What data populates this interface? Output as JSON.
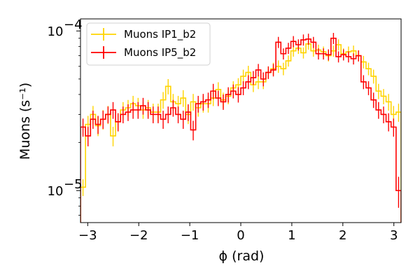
{
  "chart_data": {
    "type": "line",
    "style": "step-histogram-with-error-bars",
    "xlabel": "ϕ (rad)",
    "ylabel": "Muons (s⁻¹)",
    "xlim": [
      -3.1416,
      3.1416
    ],
    "ylim": [
      6.3e-06,
      0.000119
    ],
    "y_scale": "log",
    "x_ticks": [
      -3,
      -2,
      -1,
      0,
      1,
      2,
      3
    ],
    "x_tick_labels": [
      "−3",
      "−2",
      "−1",
      "0",
      "1",
      "2",
      "3"
    ],
    "y_ticks": [
      {
        "value": 1e-05,
        "base": "10",
        "exp": "−5"
      },
      {
        "value": 0.0001,
        "base": "10",
        "exp": "−4"
      }
    ],
    "grid": false,
    "legend_position": "top-left",
    "bin_count": 64,
    "series": [
      {
        "name": "Muons IP1_b2",
        "color": "#ffd400",
        "values": [
          1.05e-05,
          2.6e-05,
          3e-05,
          2.55e-05,
          2.8e-05,
          3e-05,
          2.2e-05,
          2.7e-05,
          3.2e-05,
          3.3e-05,
          3.5e-05,
          3.4e-05,
          3.2e-05,
          3.3e-05,
          3.1e-05,
          3.1e-05,
          3.7e-05,
          4.5e-05,
          3.6e-05,
          3.5e-05,
          3.8e-05,
          3e-05,
          3.6e-05,
          3.3e-05,
          3.5e-05,
          3.5e-05,
          3.8e-05,
          4.3e-05,
          3.7e-05,
          3.9e-05,
          4.4e-05,
          4.6e-05,
          5.2e-05,
          5.5e-05,
          4.6e-05,
          4.8e-05,
          4.8e-05,
          5.5e-05,
          5.8e-05,
          6e-05,
          5.8e-05,
          6.5e-05,
          7.5e-05,
          7.8e-05,
          7.3e-05,
          8.3e-05,
          7.5e-05,
          7.6e-05,
          7.4e-05,
          7e-05,
          7.5e-05,
          8.2e-05,
          7.2e-05,
          7.4e-05,
          7.5e-05,
          7e-05,
          6.4e-05,
          5.8e-05,
          5.2e-05,
          4.2e-05,
          3.9e-05,
          3.6e-05,
          3e-05,
          3.1e-05
        ],
        "errors": [
          0.12,
          0.13,
          0.13,
          0.14,
          0.14,
          0.13,
          0.14,
          0.13,
          0.12,
          0.12,
          0.12,
          0.12,
          0.12,
          0.12,
          0.13,
          0.13,
          0.12,
          0.11,
          0.12,
          0.12,
          0.12,
          0.13,
          0.12,
          0.12,
          0.12,
          0.12,
          0.11,
          0.11,
          0.11,
          0.11,
          0.1,
          0.1,
          0.1,
          0.1,
          0.1,
          0.1,
          0.1,
          0.09,
          0.09,
          0.09,
          0.09,
          0.08,
          0.08,
          0.08,
          0.08,
          0.08,
          0.08,
          0.08,
          0.08,
          0.08,
          0.08,
          0.08,
          0.08,
          0.08,
          0.08,
          0.08,
          0.09,
          0.09,
          0.1,
          0.11,
          0.11,
          0.12,
          0.13,
          0.13
        ]
      },
      {
        "name": "Muons IP5_b2",
        "color": "#ff0000",
        "values": [
          2.5e-05,
          2.2e-05,
          2.8e-05,
          2.6e-05,
          2.8e-05,
          3e-05,
          3.2e-05,
          2.7e-05,
          3e-05,
          3.1e-05,
          3.2e-05,
          3.2e-05,
          3.4e-05,
          3.2e-05,
          3e-05,
          3e-05,
          2.8e-05,
          3e-05,
          3.3e-05,
          3e-05,
          2.8e-05,
          3.1e-05,
          2.4e-05,
          3.5e-05,
          3.6e-05,
          3.7e-05,
          4.2e-05,
          3.8e-05,
          3.6e-05,
          4e-05,
          4.2e-05,
          4e-05,
          4.4e-05,
          4.8e-05,
          5.1e-05,
          5.7e-05,
          5e-05,
          5.5e-05,
          5.7e-05,
          8.5e-05,
          7.2e-05,
          7.8e-05,
          8.6e-05,
          8.2e-05,
          8.8e-05,
          8.9e-05,
          8.5e-05,
          7.2e-05,
          7.2e-05,
          7.1e-05,
          9e-05,
          6.9e-05,
          7.1e-05,
          6.9e-05,
          6.7e-05,
          7e-05,
          4.8e-05,
          4.4e-05,
          3.7e-05,
          3.2e-05,
          3e-05,
          2.7e-05,
          2.5e-05,
          1e-05
        ],
        "errors": [
          0.13,
          0.14,
          0.13,
          0.13,
          0.13,
          0.12,
          0.12,
          0.13,
          0.12,
          0.12,
          0.12,
          0.12,
          0.12,
          0.12,
          0.12,
          0.12,
          0.13,
          0.12,
          0.12,
          0.12,
          0.13,
          0.12,
          0.14,
          0.12,
          0.12,
          0.11,
          0.11,
          0.11,
          0.11,
          0.11,
          0.1,
          0.11,
          0.1,
          0.1,
          0.1,
          0.09,
          0.1,
          0.09,
          0.09,
          0.08,
          0.08,
          0.08,
          0.08,
          0.08,
          0.08,
          0.08,
          0.08,
          0.08,
          0.08,
          0.08,
          0.08,
          0.08,
          0.08,
          0.08,
          0.08,
          0.08,
          0.1,
          0.1,
          0.11,
          0.12,
          0.12,
          0.13,
          0.13,
          0.22
        ]
      }
    ]
  }
}
